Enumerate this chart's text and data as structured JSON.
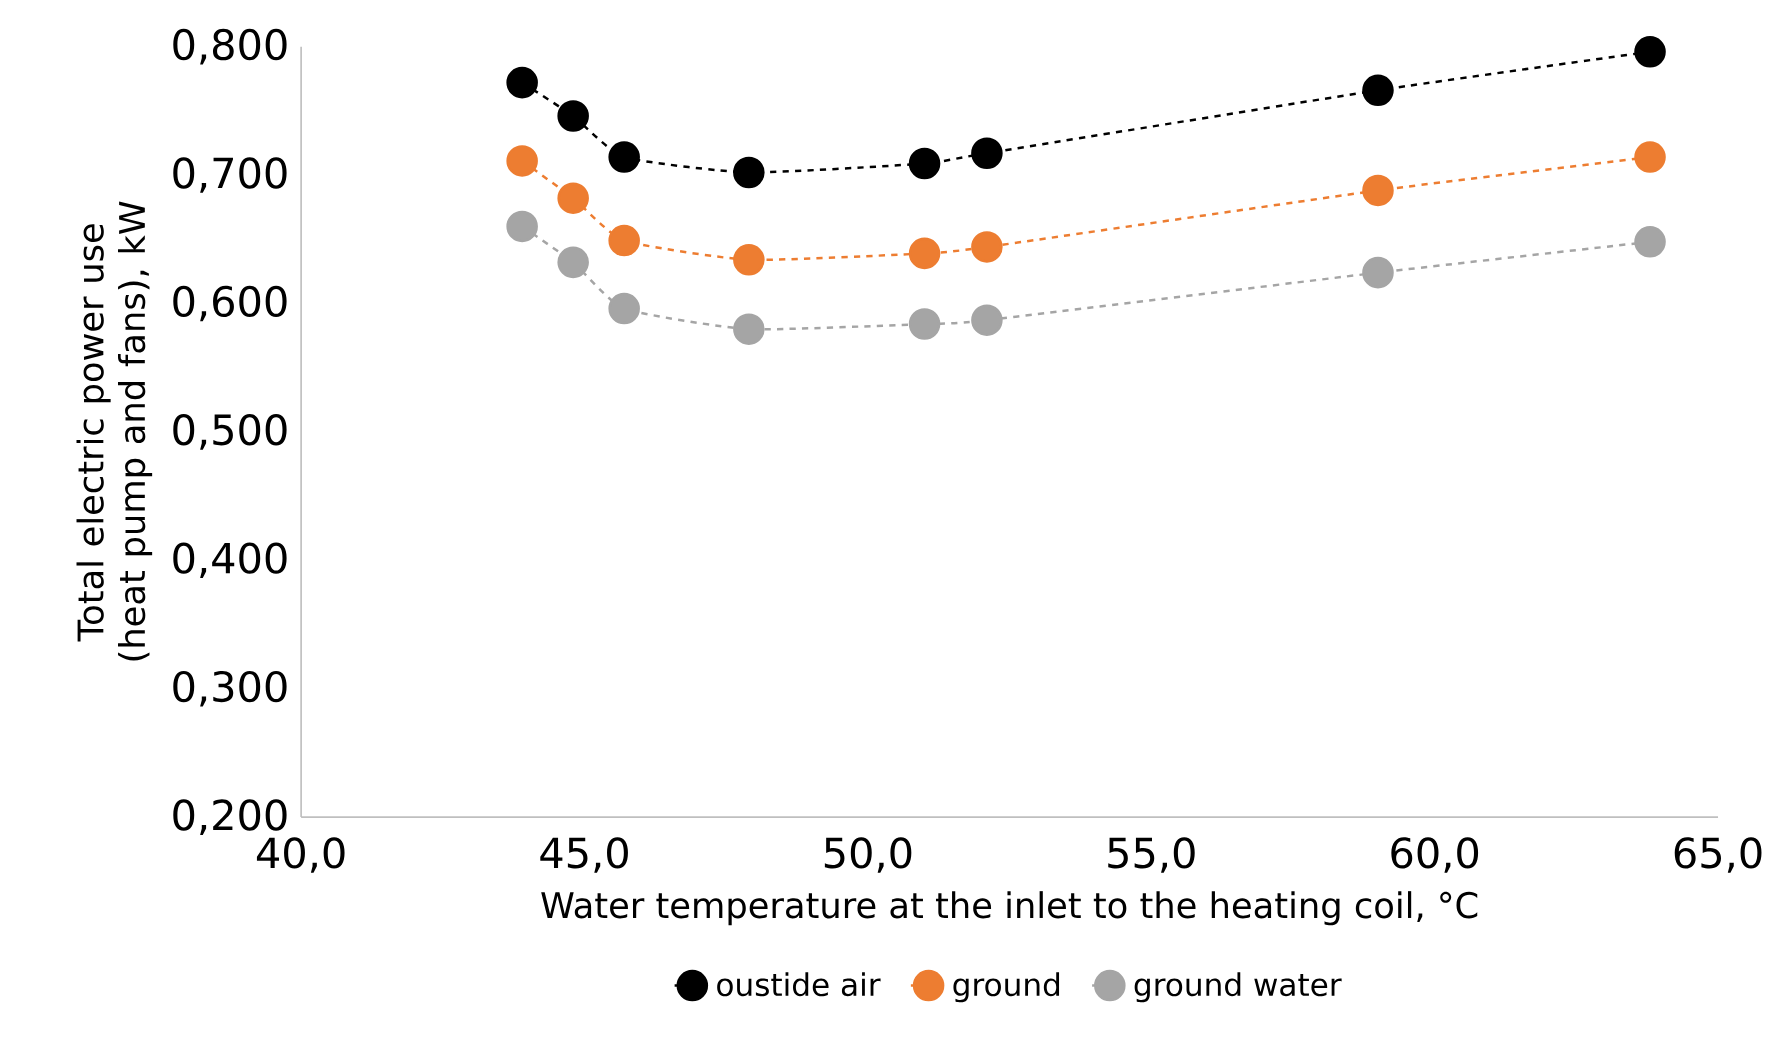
{
  "chart_data": {
    "type": "line",
    "xlabel": "Water temperature at the inlet to the heating coil, °C",
    "ylabel": "Total electric power use (heat pump and fans), kW",
    "xlim": [
      40,
      65
    ],
    "ylim": [
      0.2,
      0.8
    ],
    "xticks": [
      {
        "value": 40,
        "label": "40,0"
      },
      {
        "value": 45,
        "label": "45,0"
      },
      {
        "value": 50,
        "label": "50,0"
      },
      {
        "value": 55,
        "label": "55,0"
      },
      {
        "value": 60,
        "label": "60,0"
      },
      {
        "value": 65,
        "label": "65,0"
      }
    ],
    "yticks": [
      {
        "value": 0.2,
        "label": "0,200"
      },
      {
        "value": 0.3,
        "label": "0,300"
      },
      {
        "value": 0.4,
        "label": "0,400"
      },
      {
        "value": 0.5,
        "label": "0,500"
      },
      {
        "value": 0.6,
        "label": "0,600"
      },
      {
        "value": 0.7,
        "label": "0,700"
      },
      {
        "value": 0.8,
        "label": "0,800"
      }
    ],
    "x": [
      43.9,
      44.8,
      45.7,
      47.9,
      51.0,
      52.1,
      59.0,
      63.8
    ],
    "series": [
      {
        "name": "oustide air",
        "color": "#000000",
        "values": [
          0.772,
          0.746,
          0.714,
          0.702,
          0.709,
          0.717,
          0.766,
          0.796
        ]
      },
      {
        "name": "ground",
        "color": "#ed7d31",
        "values": [
          0.711,
          0.682,
          0.649,
          0.634,
          0.639,
          0.644,
          0.688,
          0.714
        ]
      },
      {
        "name": "ground water",
        "color": "#a5a5a5",
        "values": [
          0.66,
          0.632,
          0.596,
          0.58,
          0.584,
          0.587,
          0.624,
          0.648
        ]
      }
    ],
    "marker": "circle",
    "line_style": "dashed",
    "grid": false,
    "legend": "bottom"
  }
}
